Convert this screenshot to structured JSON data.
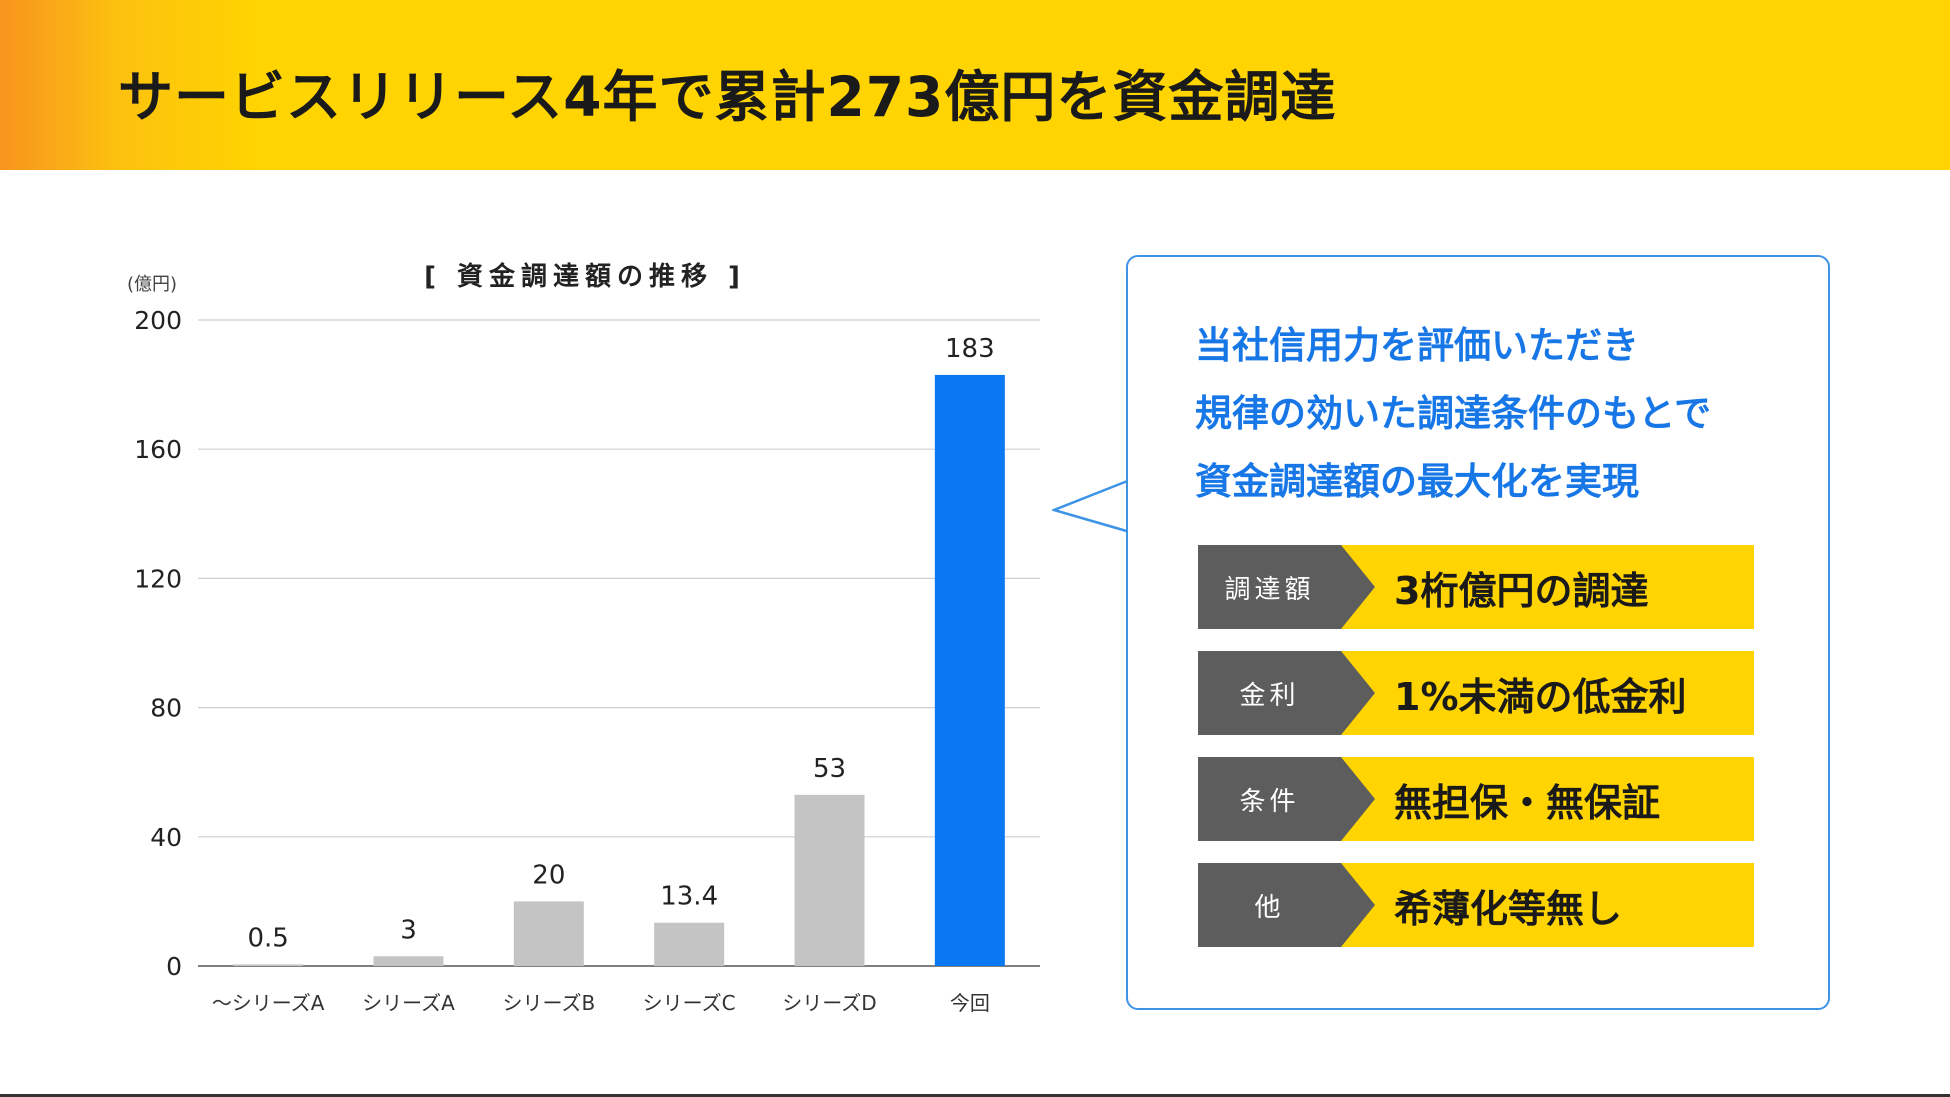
{
  "header": {
    "title": "サービスリリース4年で累計273億円を資金調達"
  },
  "chart_data": {
    "type": "bar",
    "title": "[ 資金調達額の推移 ]",
    "ylabel": "(億円)",
    "xlabel": "",
    "categories": [
      "〜シリーズA",
      "シリーズA",
      "シリーズB",
      "シリーズC",
      "シリーズD",
      "今回"
    ],
    "values": [
      0.5,
      3,
      20,
      13.4,
      53,
      183
    ],
    "value_labels": [
      "0.5",
      "3",
      "20",
      "13.4",
      "53",
      "183"
    ],
    "ylim": [
      0,
      200
    ],
    "yticks": [
      "0",
      "40",
      "80",
      "120",
      "160",
      "200"
    ],
    "ytick_values": [
      0,
      40,
      80,
      120,
      160,
      200
    ],
    "grid": true,
    "colors": {
      "default": "#c4c4c4",
      "highlight": "#0a78f0"
    },
    "highlight_index": 5
  },
  "panel": {
    "headline": [
      "当社信用力を評価いただき",
      "規律の効いた調達条件のもとで",
      "資金調達額の最大化を実現"
    ],
    "rows": [
      {
        "label": "調達額",
        "value": "3桁億円の調達"
      },
      {
        "label": "金利",
        "value": "1%未満の低金利"
      },
      {
        "label": "条件",
        "value": "無担保・無保証"
      },
      {
        "label": "他",
        "value": "希薄化等無し"
      }
    ],
    "colors": {
      "accent": "#1877e6",
      "label_bg": "#5d5d5d",
      "value_bg": "#ffd400"
    }
  }
}
